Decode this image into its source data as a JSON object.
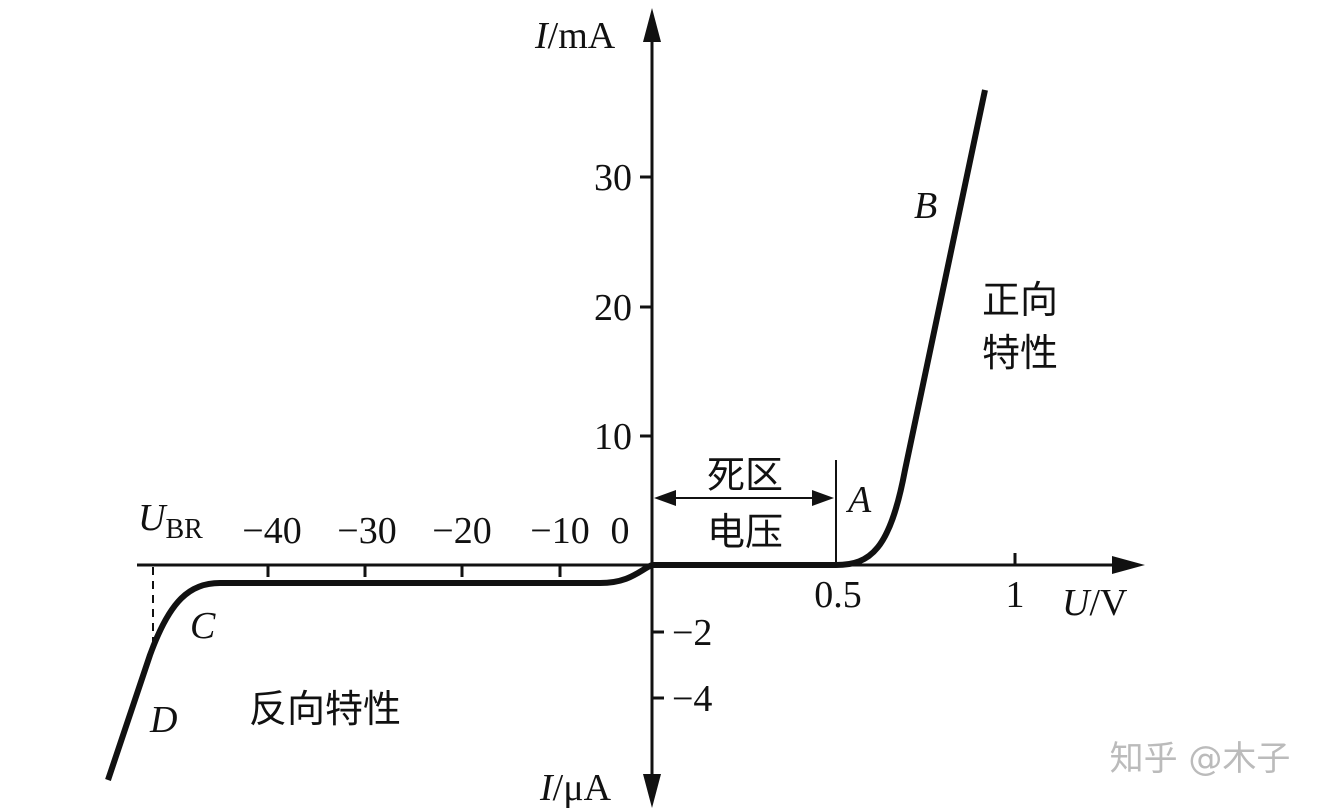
{
  "y_axis_top": {
    "symbol": "I",
    "unit": "/mA"
  },
  "y_axis_bottom": {
    "symbol": "I",
    "unit": "/μA"
  },
  "x_axis": {
    "symbol": "U",
    "unit": "/V"
  },
  "y_ticks_positive": [
    "30",
    "20",
    "10"
  ],
  "y_ticks_negative": [
    "−2",
    "−4"
  ],
  "x_ticks_positive": [
    "0.5",
    "1"
  ],
  "x_ticks_negative": [
    "−40",
    "−30",
    "−20",
    "−10"
  ],
  "origin": "0",
  "breakdown": {
    "symbol": "U",
    "subscript": "BR"
  },
  "points": {
    "A": "A",
    "B": "B",
    "C": "C",
    "D": "D"
  },
  "dead_zone": [
    "死区",
    "电压"
  ],
  "forward": [
    "正向",
    "特性"
  ],
  "reverse": "反向特性",
  "watermark": "知乎 @木子"
}
